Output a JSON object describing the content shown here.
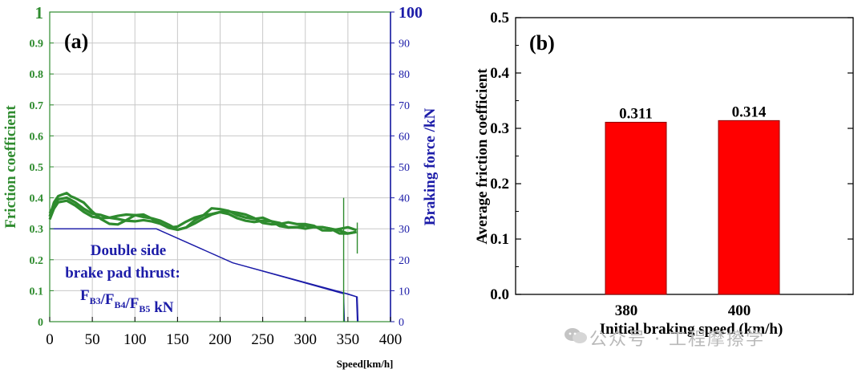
{
  "chart_data": [
    {
      "panel_label": "(a)",
      "type": "line",
      "xlabel": "Speed[km/h]",
      "ylabel_left": "Friction coefficient",
      "ylabel_right": "Braking force /kN",
      "xlim": [
        0,
        400
      ],
      "ylim_left": [
        0,
        1
      ],
      "ylim_right": [
        0,
        100
      ],
      "x_ticks": [
        "0",
        "50",
        "100",
        "150",
        "200",
        "250",
        "300",
        "350",
        "400"
      ],
      "y_left_ticks": [
        "0",
        "0.1",
        "0.2",
        "0.3",
        "0.4",
        "0.5",
        "0.6",
        "0.7",
        "0.8",
        "0.9",
        "1"
      ],
      "y_right_ticks": [
        "0",
        "10",
        "20",
        "30",
        "40",
        "50",
        "60",
        "70",
        "80",
        "90",
        "100"
      ],
      "grid": true,
      "colors": {
        "friction": "#2e8b2e",
        "force": "#1c1ca8",
        "grid": "#c8c8c8"
      },
      "series": [
        {
          "name": "Friction coefficient 1",
          "axis": "left",
          "x": [
            0,
            5,
            10,
            15,
            20,
            25,
            30,
            40,
            50,
            60,
            70,
            80,
            90,
            100,
            110,
            120,
            130,
            140,
            150,
            160,
            170,
            180,
            190,
            200,
            210,
            220,
            230,
            240,
            250,
            260,
            270,
            280,
            290,
            300,
            310,
            320,
            330,
            340,
            350,
            360
          ],
          "y": [
            0.34,
            0.38,
            0.4,
            0.41,
            0.42,
            0.41,
            0.4,
            0.38,
            0.35,
            0.33,
            0.32,
            0.32,
            0.33,
            0.34,
            0.34,
            0.33,
            0.32,
            0.31,
            0.31,
            0.32,
            0.33,
            0.34,
            0.35,
            0.36,
            0.36,
            0.35,
            0.34,
            0.33,
            0.32,
            0.32,
            0.32,
            0.32,
            0.31,
            0.31,
            0.31,
            0.3,
            0.3,
            0.3,
            0.3,
            0.29
          ]
        },
        {
          "name": "Friction coefficient 2",
          "axis": "left",
          "x": [
            0,
            5,
            10,
            20,
            30,
            40,
            50,
            60,
            70,
            80,
            90,
            100,
            110,
            120,
            130,
            140,
            150,
            160,
            170,
            180,
            190,
            200,
            210,
            220,
            230,
            240,
            250,
            260,
            270,
            280,
            290,
            300,
            310,
            320,
            330,
            340,
            350,
            360
          ],
          "y": [
            0.33,
            0.36,
            0.38,
            0.39,
            0.38,
            0.36,
            0.34,
            0.33,
            0.33,
            0.34,
            0.35,
            0.35,
            0.34,
            0.33,
            0.32,
            0.31,
            0.3,
            0.31,
            0.32,
            0.33,
            0.34,
            0.35,
            0.35,
            0.34,
            0.33,
            0.32,
            0.32,
            0.32,
            0.31,
            0.31,
            0.31,
            0.3,
            0.3,
            0.3,
            0.3,
            0.3,
            0.29,
            0.29
          ]
        },
        {
          "name": "Friction coefficient 3",
          "axis": "left",
          "x": [
            0,
            5,
            10,
            20,
            30,
            40,
            50,
            60,
            70,
            80,
            90,
            100,
            110,
            120,
            130,
            140,
            150,
            160,
            170,
            180,
            190,
            200,
            210,
            220,
            230,
            240,
            250,
            260,
            270,
            280,
            290,
            300,
            310,
            320,
            330,
            340,
            350,
            360
          ],
          "y": [
            0.35,
            0.37,
            0.39,
            0.4,
            0.39,
            0.37,
            0.35,
            0.34,
            0.33,
            0.33,
            0.33,
            0.33,
            0.33,
            0.32,
            0.31,
            0.3,
            0.3,
            0.31,
            0.33,
            0.34,
            0.36,
            0.36,
            0.36,
            0.35,
            0.34,
            0.33,
            0.33,
            0.32,
            0.32,
            0.31,
            0.31,
            0.31,
            0.3,
            0.3,
            0.3,
            0.29,
            0.29,
            0.29
          ]
        },
        {
          "name": "Braking force F_B3",
          "axis": "right",
          "x": [
            0,
            80,
            125,
            215,
            345,
            345,
            346
          ],
          "y": [
            30,
            30,
            30,
            19,
            9,
            9,
            0
          ]
        },
        {
          "name": "Braking force F_B4",
          "axis": "right",
          "x": [
            0,
            80,
            125,
            215,
            348,
            360,
            361
          ],
          "y": [
            30,
            30,
            30,
            19,
            9,
            8,
            0
          ]
        },
        {
          "name": "Braking force F_B5",
          "axis": "right",
          "x": [
            0,
            80,
            125,
            215,
            350,
            361,
            362
          ],
          "y": [
            30,
            30,
            30,
            19,
            9,
            8,
            0
          ]
        }
      ],
      "spikes": [
        {
          "x": 345,
          "ylow": 0,
          "yhigh": 0.4
        },
        {
          "x": 361,
          "ylow": 0.22,
          "yhigh": 0.32
        }
      ],
      "annotation": {
        "line1": "Double side",
        "line2": "brake pad thrust:",
        "line3_parts": [
          {
            "text": "F",
            "sub": "B3"
          },
          {
            "text": "/F",
            "sub": "B4"
          },
          {
            "text": "/F",
            "sub": "B5"
          },
          {
            "text": " kN",
            "sub": ""
          }
        ]
      }
    },
    {
      "panel_label": "(b)",
      "type": "bar",
      "xlabel": "Initial braking speed (km/h)",
      "ylabel": "Average friction coefficient",
      "categories": [
        "380",
        "400"
      ],
      "values": [
        0.311,
        0.314
      ],
      "value_labels": [
        "0.311",
        "0.314"
      ],
      "ylim": [
        0,
        0.5
      ],
      "y_ticks": [
        "0.0",
        "0.1",
        "0.2",
        "0.3",
        "0.4",
        "0.5"
      ],
      "bar_color": "#ff0000",
      "bar_edge": "#8b0000"
    }
  ],
  "watermark": "公众号 · 工程摩擦学"
}
